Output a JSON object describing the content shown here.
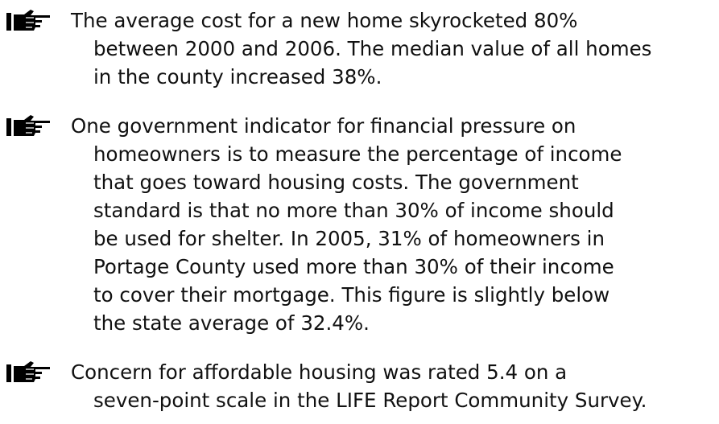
{
  "bullets": [
    {
      "lines": [
        "The average cost for a new home skyrocketed 80%",
        "between 2000 and 2006. The median value of all homes",
        "in the county increased 38%."
      ]
    },
    {
      "lines": [
        "One government indicator for financial pressure on",
        "homeowners is to measure the percentage of income",
        "that goes toward housing costs. The government",
        "standard is that no more than 30% of income should",
        "be used for shelter. In 2005, 31% of homeowners in",
        "Portage County used more than 30% of their income",
        "to cover their mortgage. This figure is slightly below",
        "the state average of 32.4%."
      ]
    },
    {
      "lines": [
        "Concern for affordable housing was rated 5.4 on a",
        "seven-point scale in the LIFE Report Community Survey."
      ]
    }
  ]
}
